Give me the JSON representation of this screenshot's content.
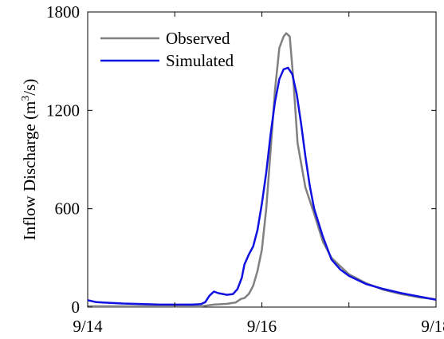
{
  "chart_data": {
    "type": "line",
    "title": "",
    "xlabel": "",
    "ylabel": "Inflow Discharge (m³/s)",
    "ylabel_parts": {
      "base": "Inflow Discharge (m",
      "sup": "3",
      "tail": "/s)"
    },
    "x_unit": "day (0 = 9/14, 4 = 9/18)",
    "xlim": [
      0,
      4
    ],
    "ylim": [
      0,
      1800
    ],
    "x_ticks": [
      {
        "value": 0,
        "label": "9/14"
      },
      {
        "value": 2,
        "label": "9/16"
      },
      {
        "value": 4,
        "label": "9/18"
      }
    ],
    "y_ticks": [
      {
        "value": 0,
        "label": "0"
      },
      {
        "value": 600,
        "label": "600"
      },
      {
        "value": 1200,
        "label": "1200"
      },
      {
        "value": 1800,
        "label": "1800"
      }
    ],
    "legend_position": "top-left",
    "series": [
      {
        "name": "Observed",
        "color": "#808080",
        "points": [
          [
            0.0,
            5
          ],
          [
            0.5,
            5
          ],
          [
            1.0,
            5
          ],
          [
            1.3,
            5
          ],
          [
            1.45,
            15
          ],
          [
            1.6,
            20
          ],
          [
            1.7,
            28
          ],
          [
            1.76,
            50
          ],
          [
            1.8,
            55
          ],
          [
            1.85,
            80
          ],
          [
            1.9,
            130
          ],
          [
            1.95,
            220
          ],
          [
            2.0,
            350
          ],
          [
            2.05,
            600
          ],
          [
            2.1,
            950
          ],
          [
            2.15,
            1320
          ],
          [
            2.2,
            1580
          ],
          [
            2.25,
            1650
          ],
          [
            2.28,
            1670
          ],
          [
            2.32,
            1650
          ],
          [
            2.36,
            1400
          ],
          [
            2.41,
            1000
          ],
          [
            2.5,
            730
          ],
          [
            2.6,
            570
          ],
          [
            2.7,
            400
          ],
          [
            2.8,
            300
          ],
          [
            2.9,
            250
          ],
          [
            3.0,
            200
          ],
          [
            3.2,
            145
          ],
          [
            3.4,
            105
          ],
          [
            3.6,
            80
          ],
          [
            3.8,
            60
          ],
          [
            4.05,
            48
          ]
        ]
      },
      {
        "name": "Simulated",
        "color": "#1010e0",
        "points": [
          [
            -0.05,
            42
          ],
          [
            0.1,
            30
          ],
          [
            0.4,
            22
          ],
          [
            0.8,
            16
          ],
          [
            1.2,
            15
          ],
          [
            1.3,
            18
          ],
          [
            1.35,
            30
          ],
          [
            1.4,
            70
          ],
          [
            1.45,
            95
          ],
          [
            1.5,
            85
          ],
          [
            1.6,
            75
          ],
          [
            1.67,
            80
          ],
          [
            1.72,
            110
          ],
          [
            1.77,
            180
          ],
          [
            1.8,
            260
          ],
          [
            1.85,
            320
          ],
          [
            1.9,
            370
          ],
          [
            1.95,
            470
          ],
          [
            2.0,
            630
          ],
          [
            2.05,
            820
          ],
          [
            2.1,
            1050
          ],
          [
            2.15,
            1250
          ],
          [
            2.2,
            1390
          ],
          [
            2.25,
            1450
          ],
          [
            2.3,
            1460
          ],
          [
            2.35,
            1420
          ],
          [
            2.4,
            1300
          ],
          [
            2.45,
            1120
          ],
          [
            2.5,
            920
          ],
          [
            2.55,
            740
          ],
          [
            2.6,
            600
          ],
          [
            2.7,
            430
          ],
          [
            2.8,
            290
          ],
          [
            2.9,
            230
          ],
          [
            3.0,
            190
          ],
          [
            3.2,
            140
          ],
          [
            3.4,
            110
          ],
          [
            3.6,
            85
          ],
          [
            3.8,
            65
          ],
          [
            4.05,
            45
          ]
        ]
      }
    ]
  }
}
